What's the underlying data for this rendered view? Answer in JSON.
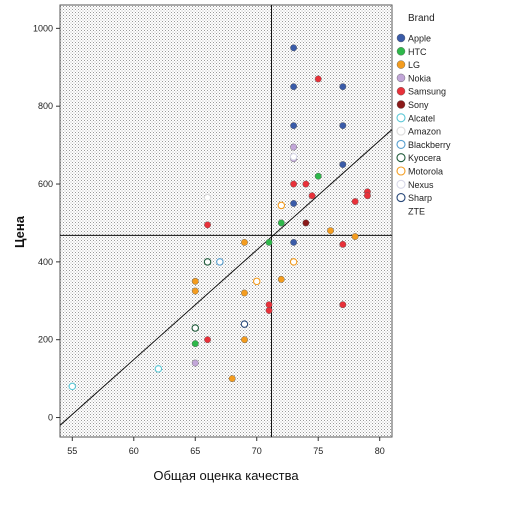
{
  "chart_data": {
    "type": "scatter",
    "xlabel": "Общая оценка качества",
    "ylabel": "Цена",
    "xlim": [
      54,
      81
    ],
    "ylim": [
      -50,
      1060
    ],
    "xticks": [
      "55",
      "60",
      "65",
      "70",
      "75",
      "80"
    ],
    "yticks": [
      "0",
      "200",
      "400",
      "600",
      "800",
      "1000"
    ],
    "xtick_values": [
      55,
      60,
      65,
      70,
      75,
      80
    ],
    "ytick_values": [
      0,
      200,
      400,
      600,
      800,
      1000
    ],
    "reference_lines": {
      "x": 71.2,
      "y": 468
    },
    "fit_line": {
      "from": [
        54,
        -20
      ],
      "to": [
        81,
        740
      ]
    },
    "grid": false,
    "background": "dotted",
    "legend_title": "Brand",
    "legend_position": "right",
    "series": [
      {
        "name": "Apple",
        "color": "#3a5ba8",
        "filled": true,
        "points": [
          [
            73,
            950
          ],
          [
            73,
            850
          ],
          [
            77,
            850
          ],
          [
            73,
            750
          ],
          [
            77,
            750
          ],
          [
            77,
            650
          ],
          [
            73,
            550
          ],
          [
            73,
            450
          ]
        ]
      },
      {
        "name": "HTC",
        "color": "#2eb84a",
        "filled": true,
        "points": [
          [
            75,
            620
          ],
          [
            72,
            500
          ],
          [
            71,
            450
          ],
          [
            65,
            190
          ]
        ]
      },
      {
        "name": "LG",
        "color": "#f39c1f",
        "filled": true,
        "points": [
          [
            78,
            465
          ],
          [
            76,
            480
          ],
          [
            69,
            450
          ],
          [
            72,
            355
          ],
          [
            65,
            350
          ],
          [
            65,
            325
          ],
          [
            69,
            320
          ],
          [
            69,
            200
          ],
          [
            68,
            100
          ]
        ]
      },
      {
        "name": "Nokia",
        "color": "#c2a6d8",
        "filled": true,
        "points": [
          [
            73,
            695
          ],
          [
            73,
            665
          ],
          [
            65,
            140
          ]
        ]
      },
      {
        "name": "Samsung",
        "color": "#e8313a",
        "filled": true,
        "points": [
          [
            75,
            870
          ],
          [
            73,
            600
          ],
          [
            74,
            600
          ],
          [
            79,
            580
          ],
          [
            79,
            570
          ],
          [
            74.5,
            570
          ],
          [
            78,
            555
          ],
          [
            66,
            495
          ],
          [
            77,
            445
          ],
          [
            71,
            290
          ],
          [
            71,
            275
          ],
          [
            77,
            290
          ],
          [
            66,
            200
          ]
        ]
      },
      {
        "name": "Sony",
        "color": "#8b1a1a",
        "filled": true,
        "points": [
          [
            74,
            500
          ]
        ]
      },
      {
        "name": "Alcatel",
        "color": "#5bc8d6",
        "filled": false,
        "points": [
          [
            55,
            80
          ],
          [
            62,
            125
          ]
        ]
      },
      {
        "name": "Amazon",
        "color": "#dcdcdc",
        "filled": false,
        "points": [
          [
            66,
            565
          ]
        ]
      },
      {
        "name": "Blackberry",
        "color": "#5aa0d0",
        "filled": false,
        "points": [
          [
            67,
            400
          ]
        ]
      },
      {
        "name": "Kyocera",
        "color": "#1f5a3a",
        "filled": false,
        "points": [
          [
            66,
            400
          ],
          [
            65,
            230
          ]
        ]
      },
      {
        "name": "Motorola",
        "color": "#f39c1f",
        "filled": false,
        "points": [
          [
            72,
            545
          ],
          [
            73,
            400
          ],
          [
            70,
            350
          ]
        ]
      },
      {
        "name": "Nexus",
        "color": "#d8d8e8",
        "filled": false,
        "points": [
          [
            73,
            670
          ]
        ]
      },
      {
        "name": "Sharp",
        "color": "#2a4a7a",
        "filled": false,
        "points": [
          [
            69,
            240
          ]
        ]
      },
      {
        "name": "ZTE",
        "color": "#ffffff",
        "filled": false,
        "points": []
      }
    ]
  }
}
